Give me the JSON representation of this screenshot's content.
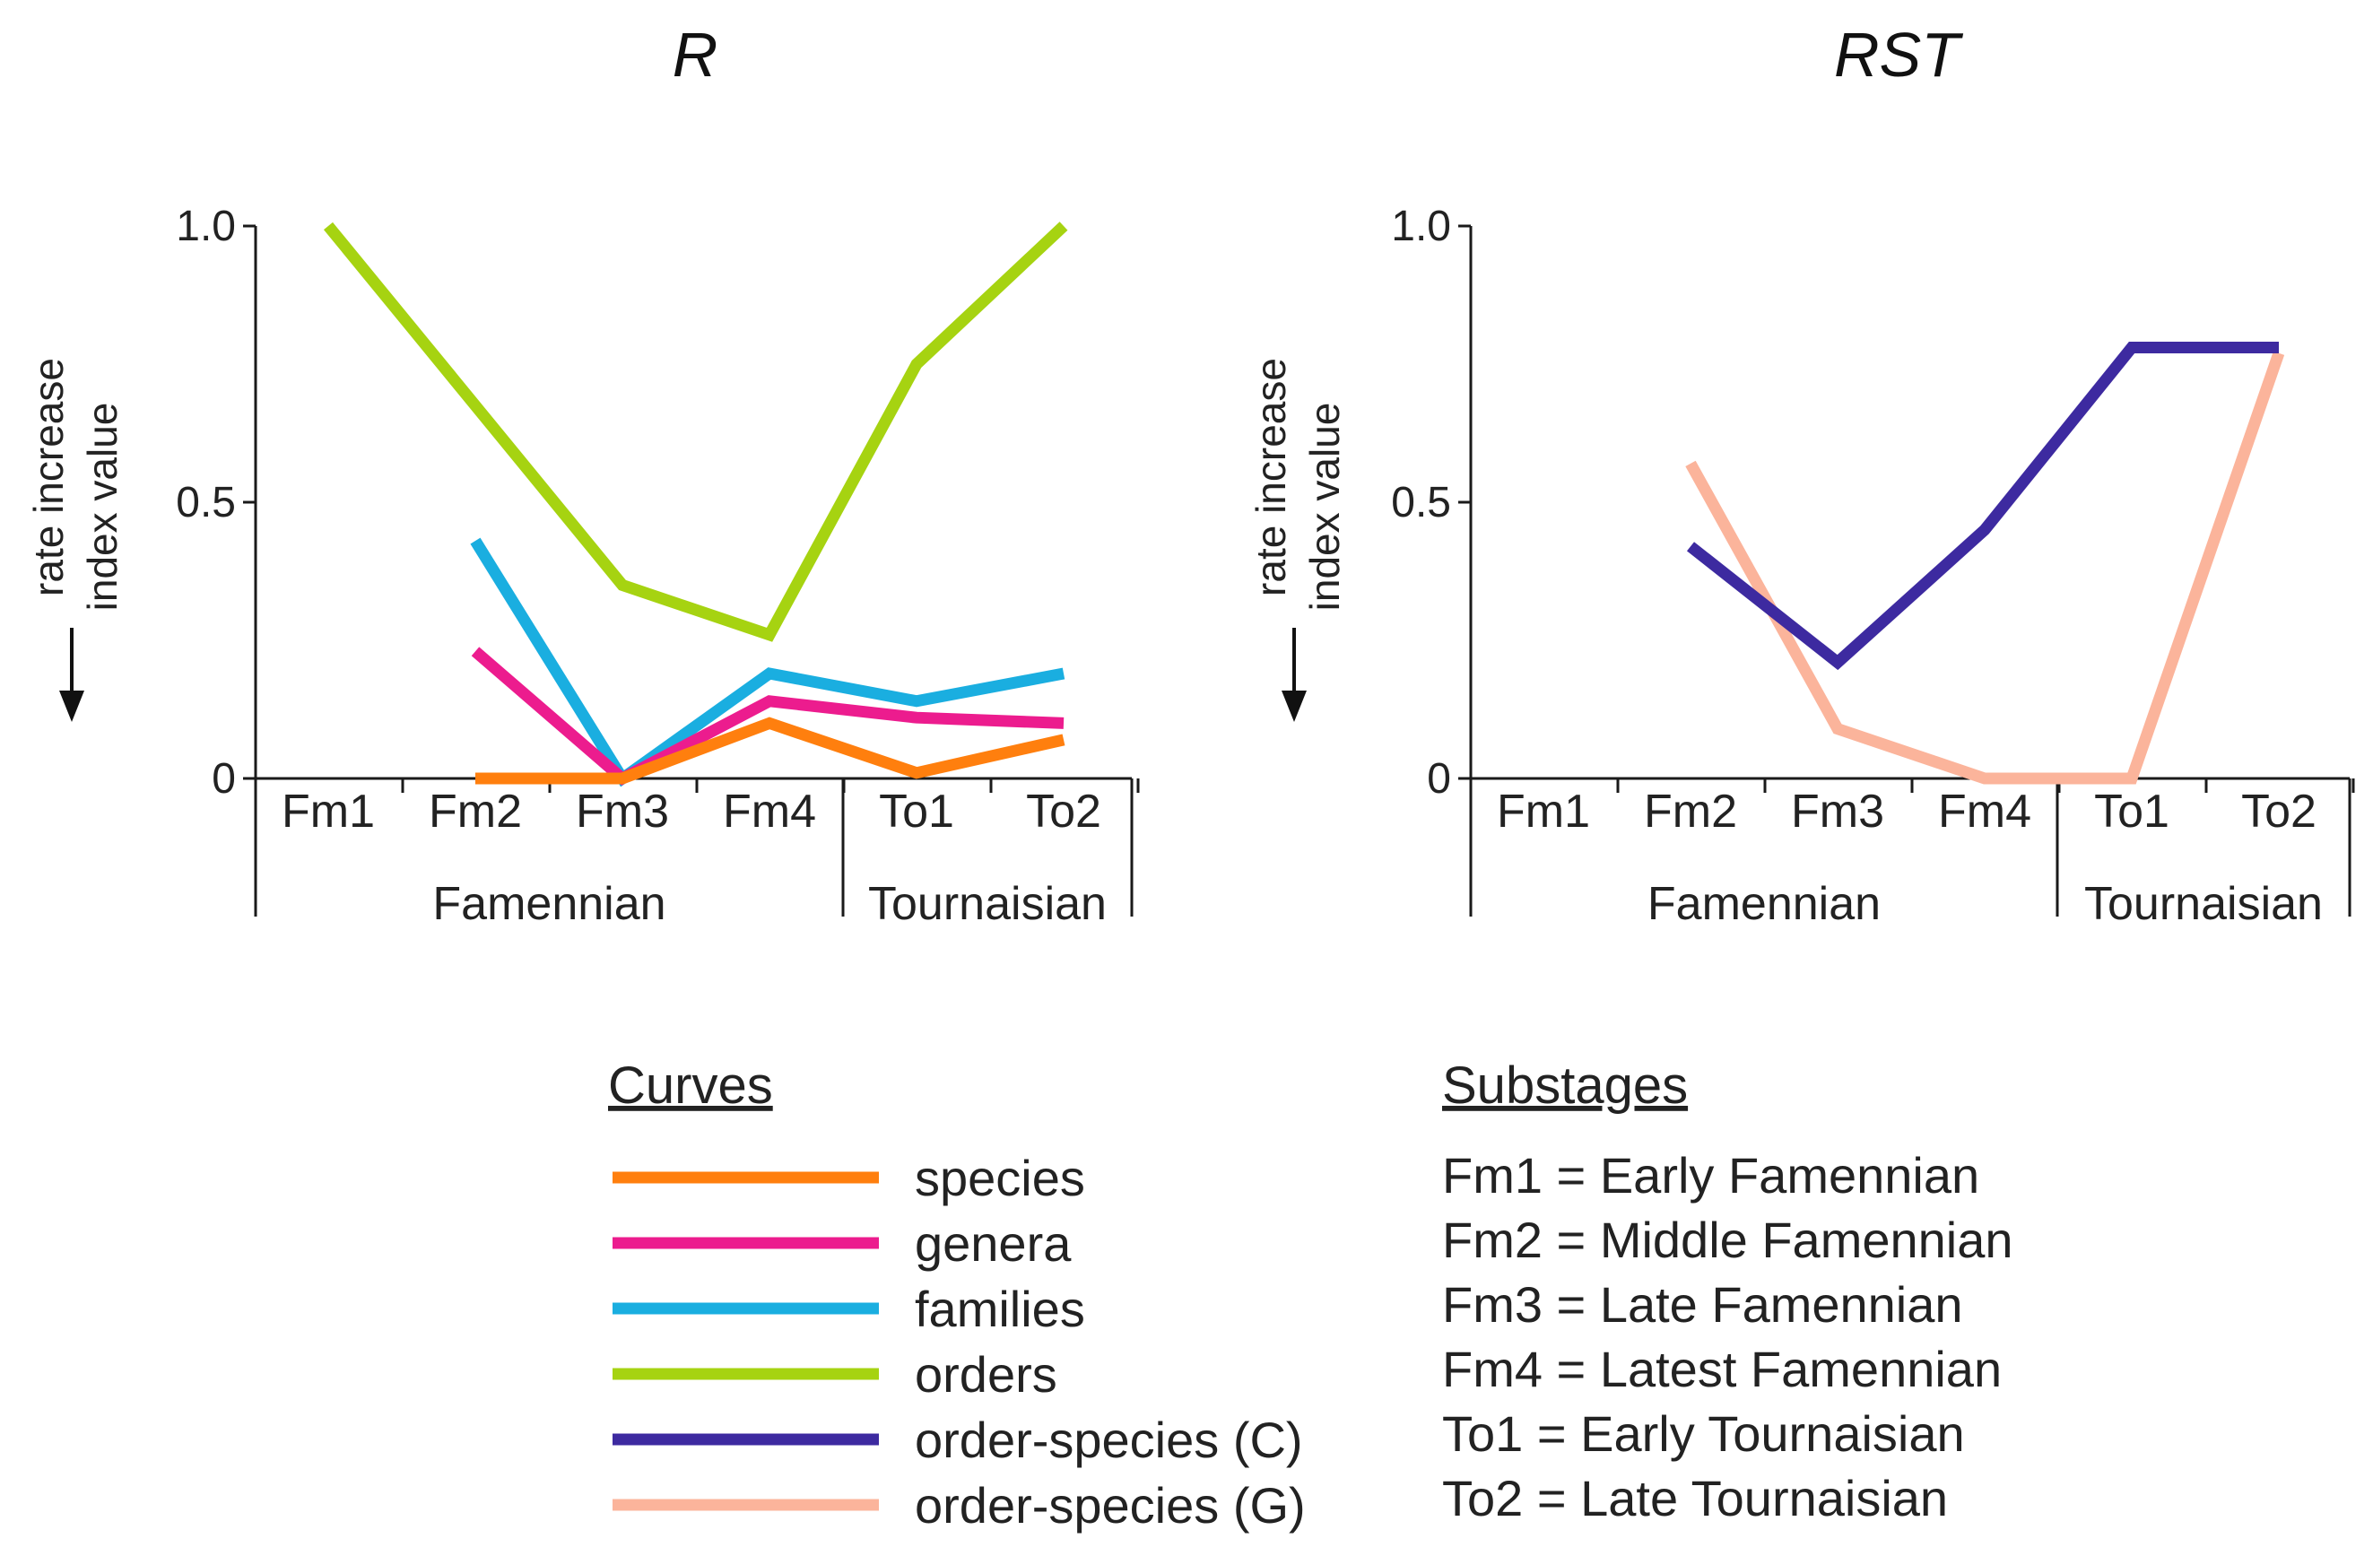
{
  "chart_data": [
    {
      "type": "line",
      "title": "R",
      "ylabel": [
        "rate increase",
        "index value"
      ],
      "ylim": [
        0,
        1.0
      ],
      "yticks": [
        "0",
        "0.5",
        "1.0"
      ],
      "categories": [
        "Fm1",
        "Fm2",
        "Fm3",
        "Fm4",
        "To1",
        "To2"
      ],
      "groups": [
        {
          "label": "Famennian",
          "span": [
            "Fm1",
            "Fm4"
          ]
        },
        {
          "label": "Tournaisian",
          "span": [
            "To1",
            "To2"
          ]
        }
      ],
      "series": [
        {
          "name": "orders",
          "color": "#a6d311",
          "x": [
            0.0,
            2.0,
            3.0,
            4.0,
            5.0
          ],
          "values": [
            1.0,
            0.35,
            0.26,
            0.75,
            1.0
          ]
        },
        {
          "name": "families",
          "color": "#1aaee0",
          "x": [
            1.0,
            2.0,
            3.0,
            4.0,
            5.0
          ],
          "values": [
            0.43,
            0.0,
            0.19,
            0.14,
            0.19
          ]
        },
        {
          "name": "genera",
          "color": "#ec1c8e",
          "x": [
            1.0,
            2.0,
            3.0,
            4.0,
            5.0
          ],
          "values": [
            0.23,
            0.0,
            0.14,
            0.11,
            0.1
          ]
        },
        {
          "name": "species",
          "color": "#ff7f0e",
          "x": [
            1.0,
            2.0,
            3.0,
            4.0,
            5.0
          ],
          "values": [
            0.0,
            0.0,
            0.1,
            0.01,
            0.07
          ]
        }
      ]
    },
    {
      "type": "line",
      "title": "RST",
      "ylabel": [
        "rate increase",
        "index value"
      ],
      "ylim": [
        0,
        1.0
      ],
      "yticks": [
        "0",
        "0.5",
        "1.0"
      ],
      "categories": [
        "Fm1",
        "Fm2",
        "Fm3",
        "Fm4",
        "To1",
        "To2"
      ],
      "groups": [
        {
          "label": "Famennian",
          "span": [
            "Fm1",
            "Fm4"
          ]
        },
        {
          "label": "Tournaisian",
          "span": [
            "To1",
            "To2"
          ]
        }
      ],
      "series": [
        {
          "name": "order-species (G)",
          "color": "#fbb49b",
          "x": [
            1.0,
            2.0,
            3.0,
            4.0,
            5.0
          ],
          "values": [
            0.57,
            0.09,
            0.0,
            0.0,
            0.77
          ]
        },
        {
          "name": "order-species (C)",
          "color": "#3d2aa0",
          "x": [
            1.0,
            2.0,
            3.0,
            4.0,
            5.0
          ],
          "values": [
            0.42,
            0.21,
            0.45,
            0.78,
            0.78
          ]
        }
      ]
    }
  ],
  "legend": {
    "heading": "Curves",
    "items": [
      {
        "label": "species",
        "color": "#ff7f0e"
      },
      {
        "label": "genera",
        "color": "#ec1c8e"
      },
      {
        "label": "families",
        "color": "#1aaee0"
      },
      {
        "label": "orders",
        "color": "#a6d311"
      },
      {
        "label": "order-species (C)",
        "color": "#3d2aa0"
      },
      {
        "label": "order-species (G)",
        "color": "#fbb49b"
      }
    ]
  },
  "substages": {
    "heading": "Substages",
    "items": [
      "Fm1 = Early Famennian",
      "Fm2 = Middle Famennian",
      "Fm3 = Late Famennian",
      "Fm4 = Latest Famennian",
      "To1 = Early Tournaisian",
      "To2 = Late Tournaisian"
    ]
  }
}
